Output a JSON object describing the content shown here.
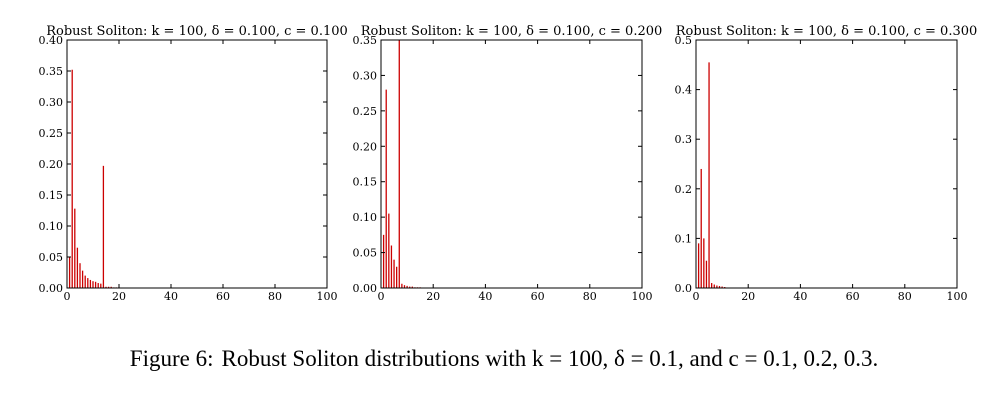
{
  "chart_data": [
    {
      "type": "bar",
      "title": "Robust Soliton: k = 100, δ = 0.100, c = 0.100",
      "xlim": [
        0,
        100
      ],
      "ylim": [
        0,
        0.4
      ],
      "xticks": [
        0,
        20,
        40,
        60,
        80,
        100
      ],
      "yticks": [
        0.0,
        0.05,
        0.1,
        0.15,
        0.2,
        0.25,
        0.3,
        0.35,
        0.4
      ],
      "ytick_labels": [
        "0.00",
        "0.05",
        "0.10",
        "0.15",
        "0.20",
        "0.25",
        "0.30",
        "0.35",
        "0.40"
      ],
      "x": [
        1,
        2,
        3,
        4,
        5,
        6,
        7,
        8,
        9,
        10,
        11,
        12,
        13,
        14,
        15,
        16,
        17,
        18,
        19,
        20
      ],
      "values": [
        0.05,
        0.352,
        0.128,
        0.065,
        0.04,
        0.028,
        0.02,
        0.016,
        0.013,
        0.011,
        0.01,
        0.008,
        0.007,
        0.197,
        0.002,
        0.002,
        0.002,
        0.001,
        0.001,
        0.001
      ],
      "color": "#cc0000"
    },
    {
      "type": "bar",
      "title": "Robust Soliton: k = 100, δ = 0.100, c = 0.200",
      "xlim": [
        0,
        100
      ],
      "ylim": [
        0,
        0.35
      ],
      "xticks": [
        0,
        20,
        40,
        60,
        80,
        100
      ],
      "yticks": [
        0.0,
        0.05,
        0.1,
        0.15,
        0.2,
        0.25,
        0.3,
        0.35
      ],
      "ytick_labels": [
        "0.00",
        "0.05",
        "0.10",
        "0.15",
        "0.20",
        "0.25",
        "0.30",
        "0.35"
      ],
      "x": [
        1,
        2,
        3,
        4,
        5,
        6,
        7,
        8,
        9,
        10,
        11,
        12,
        13,
        14,
        15
      ],
      "values": [
        0.075,
        0.28,
        0.105,
        0.06,
        0.04,
        0.03,
        0.35,
        0.006,
        0.004,
        0.003,
        0.002,
        0.002,
        0.001,
        0.001,
        0.001
      ],
      "color": "#cc0000"
    },
    {
      "type": "bar",
      "title": "Robust Soliton: k = 100, δ = 0.100, c = 0.300",
      "xlim": [
        0,
        100
      ],
      "ylim": [
        0,
        0.5
      ],
      "xticks": [
        0,
        20,
        40,
        60,
        80,
        100
      ],
      "yticks": [
        0.0,
        0.1,
        0.2,
        0.3,
        0.4,
        0.5
      ],
      "ytick_labels": [
        "0.0",
        "0.1",
        "0.2",
        "0.3",
        "0.4",
        "0.5"
      ],
      "x": [
        1,
        2,
        3,
        4,
        5,
        6,
        7,
        8,
        9,
        10,
        11,
        12,
        13
      ],
      "values": [
        0.09,
        0.24,
        0.1,
        0.055,
        0.455,
        0.01,
        0.007,
        0.005,
        0.004,
        0.003,
        0.002,
        0.001,
        0.001
      ],
      "color": "#cc0000"
    }
  ],
  "caption": {
    "label": "Figure 6:",
    "text": "Robust Soliton distributions with k = 100, δ = 0.1, and c = 0.1, 0.2, 0.3."
  }
}
